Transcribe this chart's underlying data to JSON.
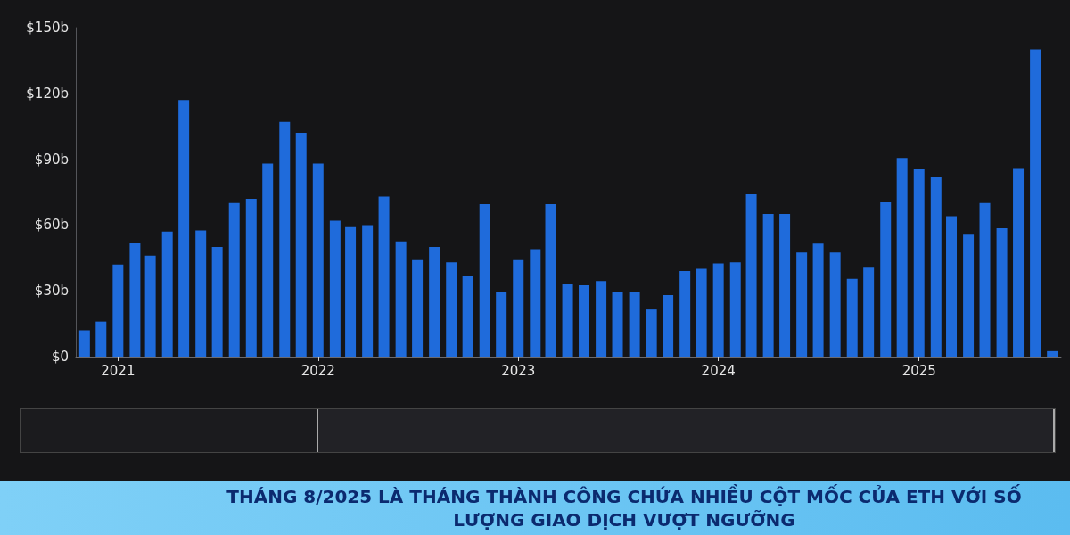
{
  "chart_data": {
    "type": "bar",
    "title": "THÁNG 8/2025 LÀ THÁNG THÀNH CÔNG CHỨA NHIỀU CỘT MỐC CỦA ETH VỚI SỐ LƯỢNG GIAO DỊCH VƯỢT NGƯỠNG",
    "x": [
      "2020-11",
      "2020-12",
      "2021-01",
      "2021-02",
      "2021-03",
      "2021-04",
      "2021-05",
      "2021-06",
      "2021-07",
      "2021-08",
      "2021-09",
      "2021-10",
      "2021-11",
      "2021-12",
      "2022-01",
      "2022-02",
      "2022-03",
      "2022-04",
      "2022-05",
      "2022-06",
      "2022-07",
      "2022-08",
      "2022-09",
      "2022-10",
      "2022-11",
      "2022-12",
      "2023-01",
      "2023-02",
      "2023-03",
      "2023-04",
      "2023-05",
      "2023-06",
      "2023-07",
      "2023-08",
      "2023-09",
      "2023-10",
      "2023-11",
      "2023-12",
      "2024-01",
      "2024-02",
      "2024-03",
      "2024-04",
      "2024-05",
      "2024-06",
      "2024-07",
      "2024-08",
      "2024-09",
      "2024-10",
      "2024-11",
      "2024-12",
      "2025-01",
      "2025-02",
      "2025-03",
      "2025-04",
      "2025-05",
      "2025-06",
      "2025-07",
      "2025-08",
      "2025-09"
    ],
    "values": [
      12,
      16,
      42,
      52,
      46,
      57,
      117,
      57.5,
      50,
      70,
      72,
      88,
      107,
      102,
      88,
      62,
      59,
      60,
      73,
      52.5,
      44,
      50,
      43,
      37,
      69.5,
      29.5,
      44,
      49,
      69.5,
      33,
      32.5,
      34.5,
      29.5,
      29.5,
      21.5,
      28,
      39,
      40,
      42.5,
      43,
      74,
      65,
      65,
      47.5,
      51.5,
      47.5,
      35.5,
      41,
      70.5,
      90.5,
      85.5,
      82,
      64,
      56,
      70,
      58.5,
      86,
      140,
      2.5
    ],
    "color": "#1f6bdb",
    "xlim": [
      "2020-10-16",
      "2025-09-17"
    ],
    "xticks": [
      {
        "value": "2021-01",
        "label": "2021"
      },
      {
        "value": "2022-01",
        "label": "2022"
      },
      {
        "value": "2023-01",
        "label": "2023"
      },
      {
        "value": "2024-01",
        "label": "2024"
      },
      {
        "value": "2025-01",
        "label": "2025"
      }
    ],
    "ylim": [
      0,
      150
    ],
    "yticks": [
      {
        "value": 0,
        "label": "$0"
      },
      {
        "value": 30,
        "label": "$30b"
      },
      {
        "value": 60,
        "label": "$60b"
      },
      {
        "value": 90,
        "label": "$90b"
      },
      {
        "value": 120,
        "label": "$120b"
      },
      {
        "value": 150,
        "label": "$150b"
      }
    ]
  }
}
